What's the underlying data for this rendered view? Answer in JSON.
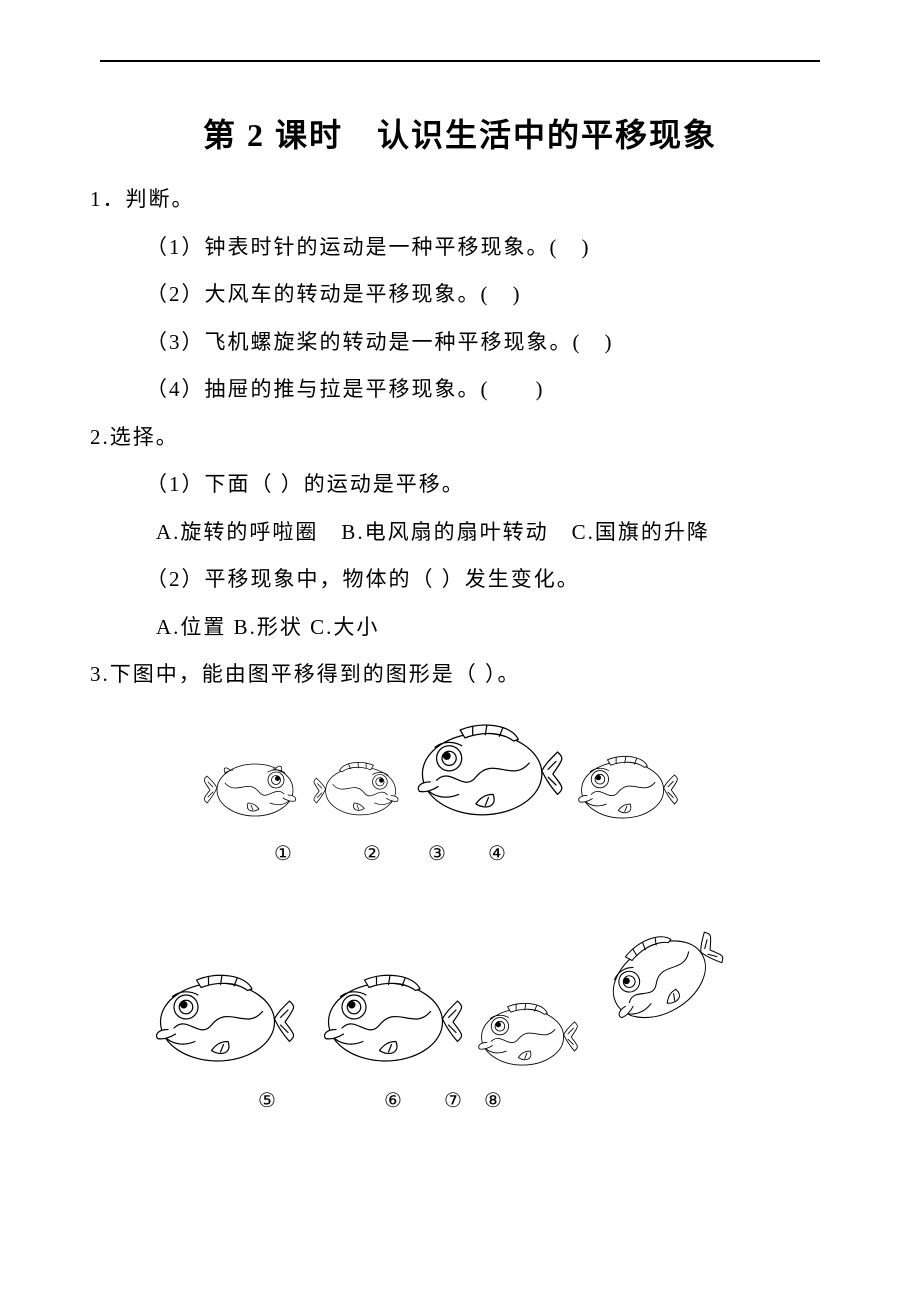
{
  "title": "第 2 课时　认识生活中的平移现象",
  "q1": {
    "stem": "1．判断。",
    "items": [
      "（1）钟表时针的运动是一种平移现象。(　)",
      "（2）大风车的转动是平移现象。(　)",
      "（3）飞机螺旋桨的转动是一种平移现象。(　)",
      "（4）抽屉的推与拉是平移现象。(　　)"
    ]
  },
  "q2": {
    "stem": "2.选择。",
    "sub1": "（1）下面（ ）的运动是平移。",
    "sub1_opts": "A.旋转的呼啦圈　B.电风扇的扇叶转动　C.国旗的升降",
    "sub2": "（2）平移现象中，物体的（ ）发生变化。",
    "sub2_opts": "A.位置 B.形状 C.大小"
  },
  "q3": {
    "stem": "3.下图中，能由图平移得到的图形是（ ）。",
    "row1_labels": [
      "①",
      "②",
      "③",
      "④"
    ],
    "row2_labels": [
      "⑤",
      "⑥",
      "⑦",
      "⑧"
    ],
    "fish": [
      {
        "w": 100,
        "h": 78,
        "flip": false,
        "rot": 0,
        "fin_up": false
      },
      {
        "w": 92,
        "h": 76,
        "flip": false,
        "rot": 0,
        "fin_up": true
      },
      {
        "w": 160,
        "h": 110,
        "flip": true,
        "rot": 0,
        "fin_up": true
      },
      {
        "w": 108,
        "h": 78,
        "flip": true,
        "rot": 0,
        "fin_up": true
      },
      {
        "w": 150,
        "h": 108,
        "flip": true,
        "rot": 0,
        "fin_up": true
      },
      {
        "w": 150,
        "h": 108,
        "flip": true,
        "rot": 0,
        "fin_up": true
      },
      {
        "w": 108,
        "h": 78,
        "flip": true,
        "rot": 0,
        "fin_up": true
      },
      {
        "w": 130,
        "h": 120,
        "flip": true,
        "rot": -30,
        "fin_up": true
      }
    ]
  },
  "style": {
    "stroke": "#000000",
    "strokeWidth": 1.6,
    "fill": "#ffffff"
  }
}
